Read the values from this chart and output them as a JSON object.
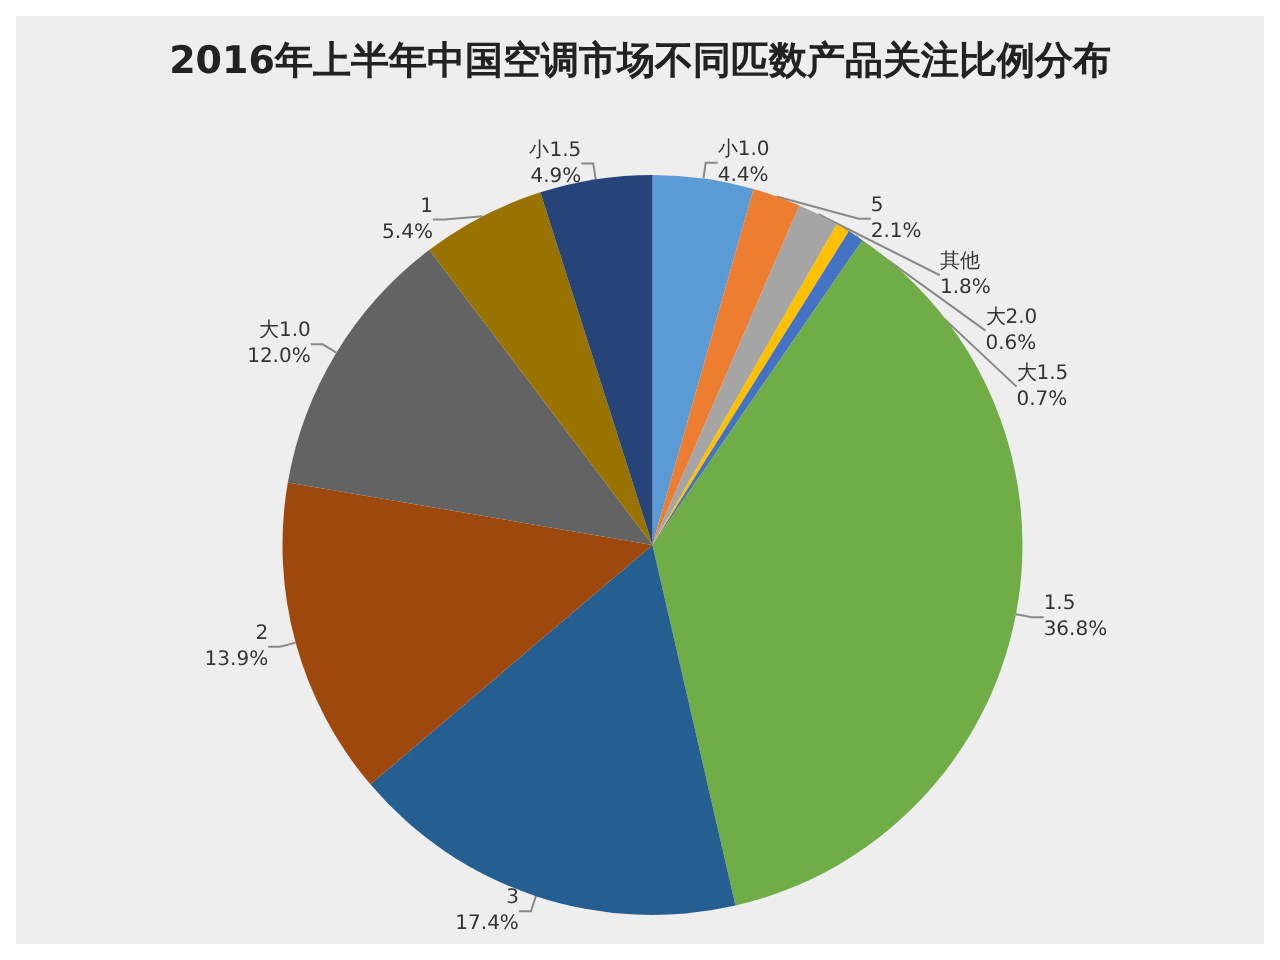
{
  "chart_data": {
    "type": "pie",
    "title": "2016年上半年中国空调市场不同匹数产品关注比例分布",
    "categories": [
      "小1.0",
      "5",
      "其他",
      "大2.0",
      "大1.5",
      "1.5",
      "3",
      "2",
      "大1.0",
      "1",
      "小1.5"
    ],
    "values": [
      4.4,
      2.1,
      1.8,
      0.6,
      0.7,
      36.8,
      17.4,
      13.9,
      12.0,
      5.4,
      4.9
    ],
    "value_labels": [
      "4.4%",
      "2.1%",
      "1.8%",
      "0.6%",
      "0.7%",
      "36.8%",
      "17.4%",
      "13.9%",
      "12.0%",
      "5.4%",
      "4.9%"
    ],
    "colors": [
      "#5b9bd5",
      "#ed7d31",
      "#a5a5a5",
      "#ffc000",
      "#4472c4",
      "#70ad47",
      "#255e91",
      "#9e480e",
      "#636363",
      "#997300",
      "#264478"
    ],
    "legend": false
  }
}
